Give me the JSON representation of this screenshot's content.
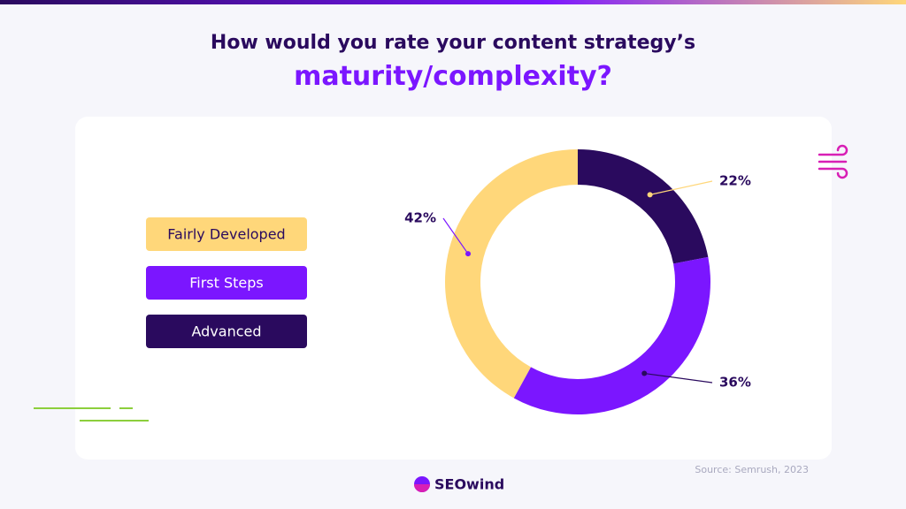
{
  "chart_data": {
    "type": "donut",
    "title": "How would you rate your content strategy’s",
    "subtitle": "maturity/complexity?",
    "categories": [
      "Advanced",
      "First Steps",
      "Fairly Developed"
    ],
    "values": [
      22,
      36,
      42
    ],
    "value_labels": [
      "22%",
      "36%",
      "42%"
    ],
    "colors": [
      "#2a0a5e",
      "#7b16ff",
      "#ffd77a"
    ],
    "source": "Source: Semrush, 2023"
  },
  "footer": {
    "logo": "SEOwind"
  }
}
